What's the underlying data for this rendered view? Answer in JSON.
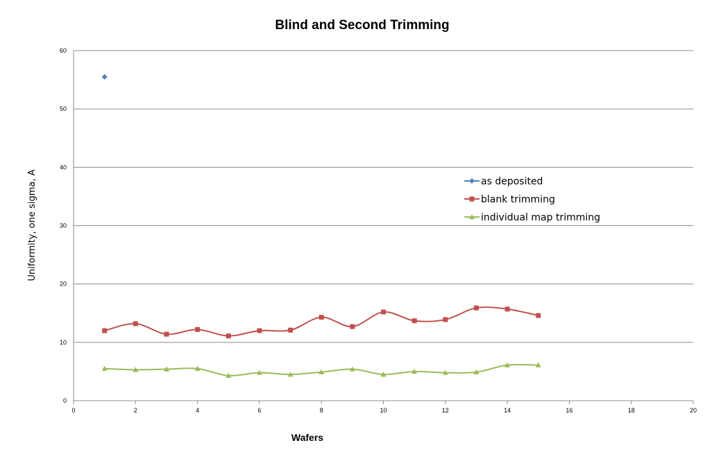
{
  "chart_data": {
    "type": "line",
    "title": "Blind and Second Trimming",
    "xlabel": "Wafers",
    "ylabel": "Uniformity, one sigma, A",
    "xlim": [
      0,
      20
    ],
    "ylim": [
      0,
      60
    ],
    "x_ticks": [
      "0",
      "2",
      "4",
      "6",
      "8",
      "10",
      "12",
      "14",
      "16",
      "18",
      "20"
    ],
    "y_ticks": [
      "0",
      "10",
      "20",
      "30",
      "40",
      "50",
      "60"
    ],
    "grid": "horizontal",
    "legend_position": "right",
    "series": [
      {
        "name": "as deposited",
        "color": "#4F81BD",
        "marker": "diamond",
        "smooth": true,
        "x": [
          1
        ],
        "y": [
          55.5
        ]
      },
      {
        "name": "blank trimming",
        "color": "#C0504D",
        "marker": "square",
        "smooth": true,
        "x": [
          1,
          2,
          3,
          4,
          5,
          6,
          7,
          8,
          9,
          10,
          11,
          12,
          13,
          14,
          15
        ],
        "y": [
          12.0,
          13.2,
          11.4,
          12.2,
          11.1,
          12.0,
          12.1,
          14.3,
          12.7,
          15.2,
          13.7,
          13.9,
          15.9,
          15.7,
          14.6
        ]
      },
      {
        "name": "individual map trimming",
        "color": "#9BBB59",
        "marker": "triangle",
        "smooth": true,
        "x": [
          1,
          2,
          3,
          4,
          5,
          6,
          7,
          8,
          9,
          10,
          11,
          12,
          13,
          14,
          15
        ],
        "y": [
          5.5,
          5.3,
          5.4,
          5.5,
          4.3,
          4.8,
          4.5,
          4.9,
          5.4,
          4.5,
          5.0,
          4.8,
          4.9,
          6.1,
          6.1
        ]
      }
    ]
  }
}
